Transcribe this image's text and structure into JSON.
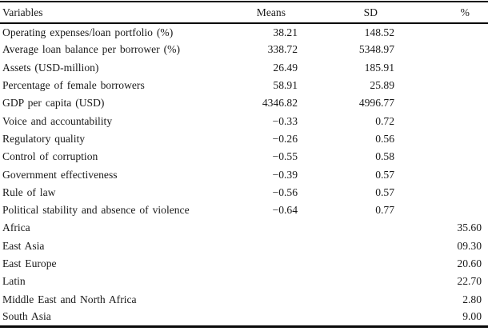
{
  "table": {
    "columns": {
      "variables": "Variables",
      "means": "Means",
      "sd": "SD",
      "pct": "%"
    },
    "rows": [
      {
        "variable": "Operating expenses/loan portfolio (%)",
        "means": "38.21",
        "sd": "148.52",
        "pct": ""
      },
      {
        "variable": "Average loan balance per borrower (%)",
        "means": "338.72",
        "sd": "5348.97",
        "pct": ""
      },
      {
        "variable": "Assets (USD-million)",
        "means": "26.49",
        "sd": "185.91",
        "pct": ""
      },
      {
        "variable": "Percentage of female borrowers",
        "means": "58.91",
        "sd": "25.89",
        "pct": ""
      },
      {
        "variable": "GDP per capita (USD)",
        "means": "4346.82",
        "sd": "4996.77",
        "pct": ""
      },
      {
        "variable": "Voice and accountability",
        "means": "−0.33",
        "sd": "0.72",
        "pct": ""
      },
      {
        "variable": "Regulatory quality",
        "means": "−0.26",
        "sd": "0.56",
        "pct": ""
      },
      {
        "variable": "Control of corruption",
        "means": "−0.55",
        "sd": "0.58",
        "pct": ""
      },
      {
        "variable": "Government effectiveness",
        "means": "−0.39",
        "sd": "0.57",
        "pct": ""
      },
      {
        "variable": "Rule of law",
        "means": "−0.56",
        "sd": "0.57",
        "pct": ""
      },
      {
        "variable": "Political stability and absence of violence",
        "means": "−0.64",
        "sd": "0.77",
        "pct": ""
      },
      {
        "variable": "Africa",
        "means": "",
        "sd": "",
        "pct": "35.60"
      },
      {
        "variable": "East Asia",
        "means": "",
        "sd": "",
        "pct": "09.30"
      },
      {
        "variable": "East Europe",
        "means": "",
        "sd": "",
        "pct": "20.60"
      },
      {
        "variable": "Latin",
        "means": "",
        "sd": "",
        "pct": "22.70"
      },
      {
        "variable": "Middle East and North Africa",
        "means": "",
        "sd": "",
        "pct": "2.80"
      },
      {
        "variable": "South Asia",
        "means": "",
        "sd": "",
        "pct": "9.00"
      }
    ]
  },
  "colors": {
    "rule": "#0a0a0a",
    "text": "#1a1a1a",
    "background": "#ffffff"
  }
}
